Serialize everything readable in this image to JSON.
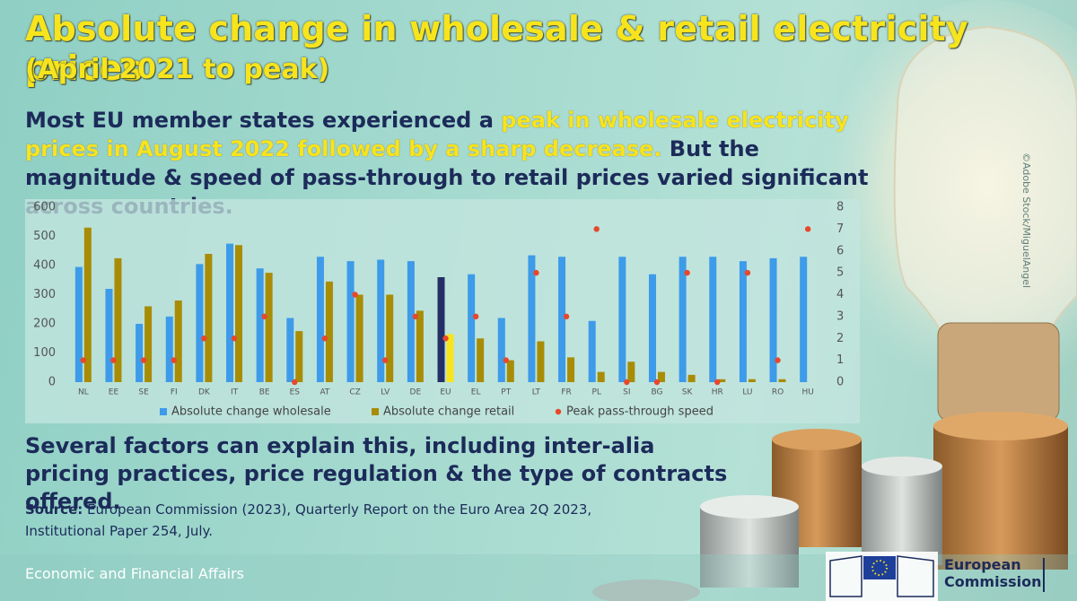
{
  "header": {
    "title": "Absolute change in wholesale & retail electricity prices",
    "subtitle": "(April 2021 to peak)",
    "lead": [
      "Most EU member states experienced a ",
      "peak in wholesale electricity prices in August 2022 followed by a sharp decrease.",
      " But the magnitude & speed of pass-through to retail prices varied significant across countries."
    ]
  },
  "note": "Several factors can explain this, including inter-alia pricing practices, price regulation & the type of contracts offered.",
  "source": {
    "label": "Source:",
    "text": " European Commission (2023), Quarterly Report on the Euro Area 2Q 2023, Institutional Paper 254, July."
  },
  "footer": {
    "department": "Economic and Financial Affairs",
    "logo_text": "European Commission",
    "credit": "©Adobe Stock/MiguelAngel"
  },
  "chart_data": {
    "type": "bar",
    "categories": [
      "NL",
      "EE",
      "SE",
      "FI",
      "DK",
      "IT",
      "BE",
      "ES",
      "AT",
      "CZ",
      "LV",
      "DE",
      "EU",
      "EL",
      "PT",
      "LT",
      "FR",
      "PL",
      "SI",
      "BG",
      "SK",
      "HR",
      "LU",
      "RO",
      "HU"
    ],
    "highlight": "EU",
    "series": [
      {
        "name": "Absolute change wholesale",
        "type": "bar",
        "color": "#3d9be9",
        "highlight_color": "#232f66",
        "values": [
          395,
          320,
          200,
          225,
          405,
          475,
          390,
          220,
          430,
          415,
          420,
          415,
          360,
          370,
          220,
          435,
          430,
          210,
          430,
          370,
          430,
          430,
          415,
          425,
          430
        ]
      },
      {
        "name": "Absolute change retail",
        "type": "bar",
        "color": "#a88c06",
        "highlight_color": "#f7e41c",
        "values": [
          530,
          425,
          260,
          280,
          440,
          470,
          375,
          175,
          345,
          300,
          300,
          245,
          165,
          150,
          75,
          140,
          85,
          35,
          70,
          35,
          25,
          10,
          10,
          10,
          null
        ]
      },
      {
        "name": "Peak pass-through speed",
        "type": "scatter",
        "axis": "y2",
        "color": "#e8472c",
        "values": [
          1,
          1,
          1,
          1,
          2,
          2,
          3,
          0,
          2,
          4,
          1,
          3,
          2,
          3,
          1,
          5,
          3,
          7,
          0,
          0,
          5,
          0,
          5,
          1,
          7
        ]
      }
    ],
    "ylim": [
      0,
      600
    ],
    "yticks": [
      0,
      100,
      200,
      300,
      400,
      500,
      600
    ],
    "y2lim": [
      0,
      8
    ],
    "y2ticks": [
      0,
      1,
      2,
      3,
      4,
      5,
      6,
      7,
      8
    ],
    "grid": false,
    "legend": "bottom"
  }
}
